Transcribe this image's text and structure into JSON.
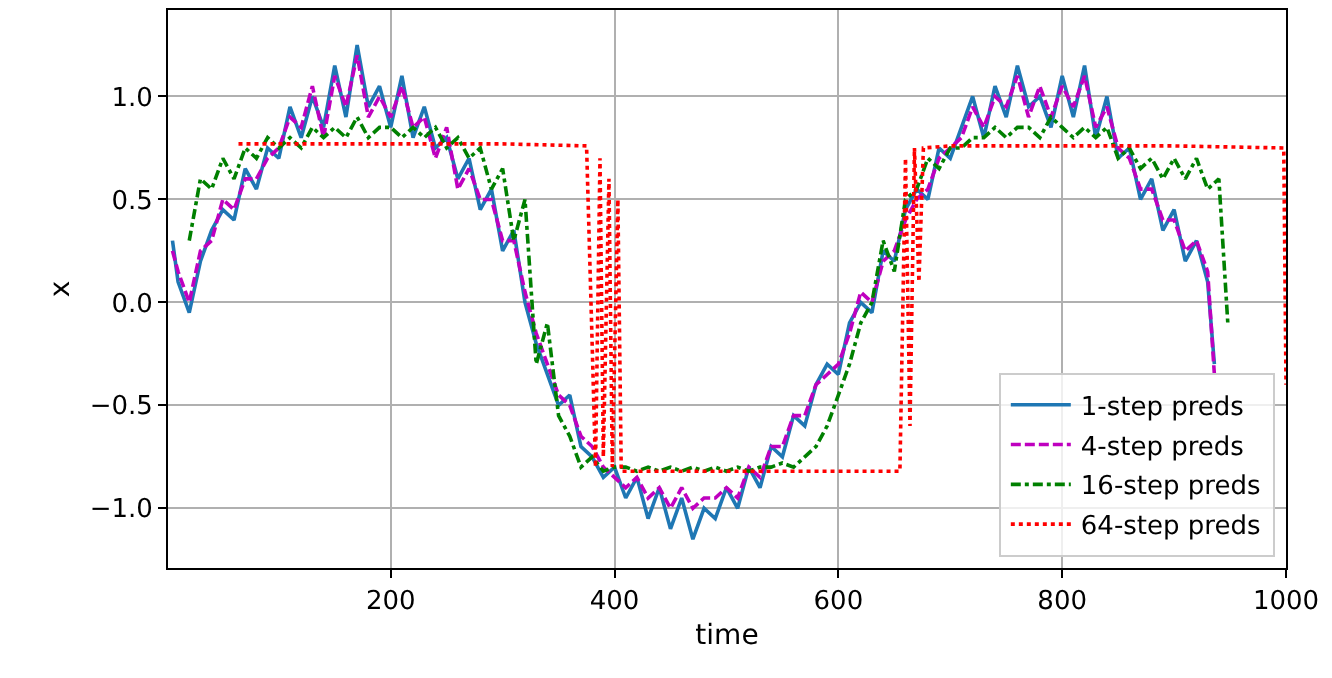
{
  "chart_data": {
    "type": "line",
    "xlabel": "time",
    "ylabel": "x",
    "xlim": [
      1,
      1000
    ],
    "xticks": [
      200,
      400,
      600,
      800,
      1000
    ],
    "ylim": [
      -1.29,
      1.42
    ],
    "yticks": [
      {
        "value": -1.0,
        "label": "−1.0"
      },
      {
        "value": -0.5,
        "label": "−0.5"
      },
      {
        "value": 0.0,
        "label": "0.0"
      },
      {
        "value": 0.5,
        "label": "0.5"
      },
      {
        "value": 1.0,
        "label": "1.0"
      }
    ],
    "grid": true,
    "legend": "bottom right",
    "marker": "none",
    "series": [
      {
        "name": "1-step preds",
        "color": "#1f77b4",
        "line_style": "solid",
        "x": [
          5,
          10,
          20,
          30,
          40,
          50,
          60,
          70,
          80,
          90,
          100,
          110,
          120,
          130,
          140,
          150,
          160,
          170,
          180,
          190,
          200,
          210,
          220,
          230,
          240,
          250,
          260,
          270,
          280,
          290,
          300,
          310,
          320,
          330,
          340,
          350,
          360,
          370,
          380,
          390,
          400,
          410,
          420,
          430,
          440,
          450,
          460,
          470,
          480,
          490,
          500,
          510,
          520,
          530,
          540,
          550,
          560,
          570,
          580,
          590,
          600,
          610,
          620,
          630,
          640,
          650,
          660,
          670,
          680,
          690,
          700,
          710,
          720,
          730,
          740,
          750,
          760,
          770,
          780,
          790,
          800,
          810,
          820,
          830,
          840,
          850,
          860,
          870,
          880,
          890,
          900,
          910,
          920,
          930,
          936
        ],
        "values": [
          0.3,
          0.1,
          -0.05,
          0.2,
          0.35,
          0.45,
          0.4,
          0.65,
          0.55,
          0.75,
          0.7,
          0.95,
          0.8,
          1.0,
          0.85,
          1.15,
          0.9,
          1.25,
          0.95,
          1.05,
          0.85,
          1.1,
          0.8,
          0.95,
          0.75,
          0.8,
          0.6,
          0.7,
          0.45,
          0.55,
          0.25,
          0.35,
          0.0,
          -0.2,
          -0.35,
          -0.5,
          -0.45,
          -0.7,
          -0.75,
          -0.85,
          -0.8,
          -0.95,
          -0.85,
          -1.05,
          -0.9,
          -1.1,
          -0.95,
          -1.15,
          -1.0,
          -1.05,
          -0.9,
          -1.0,
          -0.8,
          -0.9,
          -0.7,
          -0.75,
          -0.55,
          -0.6,
          -0.4,
          -0.3,
          -0.35,
          -0.1,
          0.0,
          -0.05,
          0.25,
          0.2,
          0.45,
          0.55,
          0.5,
          0.75,
          0.7,
          0.85,
          1.0,
          0.8,
          1.05,
          0.9,
          1.15,
          0.95,
          1.0,
          0.85,
          1.1,
          0.9,
          1.15,
          0.8,
          1.0,
          0.7,
          0.75,
          0.5,
          0.6,
          0.35,
          0.45,
          0.2,
          0.3,
          0.1,
          -0.3
        ]
      },
      {
        "name": "4-step preds",
        "color": "#bf00bf",
        "line_style": "dashed",
        "x": [
          5,
          10,
          20,
          30,
          40,
          50,
          60,
          70,
          80,
          90,
          100,
          110,
          120,
          130,
          140,
          150,
          160,
          170,
          180,
          190,
          200,
          210,
          220,
          230,
          240,
          250,
          260,
          270,
          280,
          290,
          300,
          310,
          320,
          330,
          340,
          350,
          360,
          370,
          380,
          390,
          400,
          410,
          420,
          430,
          440,
          450,
          460,
          470,
          480,
          490,
          500,
          510,
          520,
          530,
          540,
          550,
          560,
          570,
          580,
          590,
          600,
          610,
          620,
          630,
          640,
          650,
          660,
          670,
          680,
          690,
          700,
          710,
          720,
          730,
          740,
          750,
          760,
          770,
          780,
          790,
          800,
          810,
          820,
          830,
          840,
          850,
          860,
          870,
          880,
          890,
          900,
          910,
          920,
          930,
          936
        ],
        "values": [
          0.25,
          0.15,
          0.0,
          0.25,
          0.3,
          0.5,
          0.45,
          0.6,
          0.6,
          0.7,
          0.75,
          0.9,
          0.85,
          1.05,
          0.8,
          1.1,
          0.95,
          1.2,
          0.9,
          1.0,
          0.9,
          1.05,
          0.85,
          0.9,
          0.7,
          0.85,
          0.55,
          0.65,
          0.5,
          0.5,
          0.3,
          0.3,
          0.05,
          -0.15,
          -0.3,
          -0.45,
          -0.5,
          -0.65,
          -0.7,
          -0.8,
          -0.85,
          -0.9,
          -0.85,
          -0.95,
          -0.9,
          -1.0,
          -0.9,
          -1.0,
          -0.95,
          -0.95,
          -0.9,
          -0.95,
          -0.8,
          -0.85,
          -0.7,
          -0.7,
          -0.55,
          -0.55,
          -0.4,
          -0.35,
          -0.3,
          -0.15,
          0.05,
          0.0,
          0.2,
          0.25,
          0.4,
          0.5,
          0.55,
          0.7,
          0.75,
          0.8,
          0.95,
          0.85,
          1.0,
          0.95,
          1.1,
          0.9,
          1.05,
          0.9,
          1.05,
          0.95,
          1.1,
          0.85,
          0.95,
          0.75,
          0.7,
          0.55,
          0.55,
          0.4,
          0.4,
          0.25,
          0.3,
          0.15,
          -0.35
        ]
      },
      {
        "name": "16-step preds",
        "color": "#008000",
        "line_style": "dashdot",
        "x": [
          20,
          30,
          40,
          50,
          60,
          70,
          80,
          90,
          100,
          110,
          120,
          130,
          140,
          150,
          160,
          170,
          180,
          190,
          200,
          210,
          220,
          230,
          240,
          250,
          260,
          270,
          280,
          290,
          300,
          310,
          320,
          330,
          340,
          350,
          360,
          370,
          380,
          390,
          400,
          410,
          420,
          430,
          440,
          450,
          460,
          470,
          480,
          490,
          500,
          510,
          520,
          530,
          540,
          550,
          560,
          570,
          580,
          590,
          600,
          610,
          620,
          630,
          640,
          650,
          660,
          670,
          680,
          690,
          700,
          710,
          720,
          730,
          740,
          750,
          760,
          770,
          780,
          790,
          800,
          810,
          820,
          830,
          840,
          850,
          860,
          870,
          880,
          890,
          900,
          910,
          920,
          930,
          940,
          948
        ],
        "values": [
          0.3,
          0.6,
          0.55,
          0.7,
          0.6,
          0.75,
          0.7,
          0.8,
          0.75,
          0.8,
          0.75,
          0.85,
          0.8,
          0.85,
          0.8,
          0.9,
          0.8,
          0.85,
          0.85,
          0.8,
          0.85,
          0.8,
          0.85,
          0.75,
          0.8,
          0.7,
          0.75,
          0.55,
          0.65,
          0.3,
          0.5,
          -0.3,
          -0.1,
          -0.55,
          -0.65,
          -0.8,
          -0.75,
          -0.82,
          -0.8,
          -0.8,
          -0.82,
          -0.8,
          -0.82,
          -0.8,
          -0.82,
          -0.8,
          -0.82,
          -0.8,
          -0.82,
          -0.8,
          -0.82,
          -0.8,
          -0.8,
          -0.78,
          -0.8,
          -0.75,
          -0.7,
          -0.6,
          -0.45,
          -0.3,
          -0.1,
          0.0,
          0.3,
          0.15,
          0.5,
          0.55,
          0.7,
          0.65,
          0.75,
          0.75,
          0.8,
          0.8,
          0.85,
          0.8,
          0.85,
          0.85,
          0.8,
          0.9,
          0.85,
          0.8,
          0.85,
          0.8,
          0.85,
          0.7,
          0.75,
          0.65,
          0.7,
          0.6,
          0.7,
          0.6,
          0.7,
          0.55,
          0.6,
          -0.1
        ]
      },
      {
        "name": "64-step preds",
        "color": "#ff0000",
        "line_style": "dotted",
        "x": [
          64,
          100,
          200,
          300,
          375,
          380,
          383,
          387,
          390,
          395,
          398,
          403,
          406,
          410,
          500,
          600,
          655,
          660,
          664,
          668,
          672,
          676,
          700,
          800,
          900,
          998,
          1000
        ],
        "values": [
          0.77,
          0.77,
          0.77,
          0.77,
          0.76,
          -0.2,
          -0.8,
          0.7,
          -0.75,
          0.6,
          -0.8,
          0.5,
          -0.82,
          -0.82,
          -0.82,
          -0.82,
          -0.82,
          0.7,
          -0.6,
          0.75,
          0.1,
          0.75,
          0.76,
          0.76,
          0.76,
          0.75,
          -0.4
        ]
      }
    ]
  }
}
